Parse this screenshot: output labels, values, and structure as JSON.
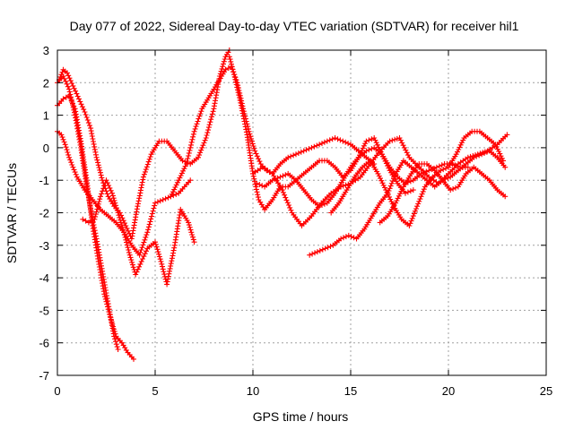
{
  "chart_data": {
    "type": "scatter",
    "title": "Day 077 of 2022, Sidereal Day-to-day VTEC variation (SDTVAR) for receiver hil1",
    "xlabel": "GPS time / hours",
    "ylabel": "SDTVAR / TECUs",
    "xlim": [
      0,
      25
    ],
    "ylim": [
      -7,
      3
    ],
    "xticks": [
      "0",
      "5",
      "10",
      "15",
      "20",
      "25"
    ],
    "yticks": [
      "3",
      "2",
      "1",
      "0",
      "-1",
      "-2",
      "-3",
      "-4",
      "-5",
      "-6",
      "-7"
    ],
    "grid": true,
    "marker": "plus",
    "color": "#ff0000",
    "series": [
      {
        "name": "s1",
        "x": [
          0.0,
          0.3,
          0.6,
          0.9,
          1.2,
          1.5,
          1.8,
          2.1,
          2.4,
          2.7,
          3.0,
          3.3,
          3.6,
          3.9
        ],
        "y": [
          1.3,
          1.5,
          1.6,
          1.2,
          0.2,
          -1.0,
          -2.4,
          -3.5,
          -4.5,
          -5.2,
          -5.8,
          -6.0,
          -6.3,
          -6.5
        ]
      },
      {
        "name": "s2",
        "x": [
          0.0,
          0.3,
          0.6,
          0.9,
          1.2,
          1.5,
          1.8,
          2.0,
          2.3,
          2.6,
          2.9,
          3.1
        ],
        "y": [
          2.0,
          2.2,
          1.8,
          1.0,
          0.0,
          -1.2,
          -2.2,
          -2.8,
          -3.8,
          -4.8,
          -5.8,
          -6.2
        ]
      },
      {
        "name": "s3",
        "x": [
          0.0,
          0.2,
          0.4,
          0.6,
          0.8,
          1.0,
          1.4,
          1.8,
          2.2,
          2.6,
          3.0,
          3.4,
          3.8,
          4.2,
          4.6,
          5.0,
          5.4,
          5.8,
          6.2,
          6.5,
          6.8
        ],
        "y": [
          0.5,
          0.4,
          0.1,
          -0.3,
          -0.6,
          -0.9,
          -1.3,
          -1.6,
          -1.9,
          -2.1,
          -2.3,
          -2.6,
          -3.0,
          -3.3,
          -2.6,
          -1.7,
          -1.6,
          -1.5,
          -1.4,
          -1.2,
          -1.0
        ]
      },
      {
        "name": "s4",
        "x": [
          0.1,
          0.3,
          0.5,
          0.8,
          1.1,
          1.4,
          1.7,
          2.0,
          2.3,
          2.6,
          2.9,
          3.2,
          3.5,
          3.8,
          4.1,
          4.4,
          4.8,
          5.2,
          5.6,
          6.0,
          6.4,
          6.8,
          7.2,
          7.6,
          8.0,
          8.3,
          8.6,
          8.8
        ],
        "y": [
          2.1,
          2.4,
          2.3,
          1.9,
          1.5,
          1.1,
          0.6,
          -0.3,
          -1.0,
          -1.5,
          -1.8,
          -2.0,
          -2.4,
          -2.8,
          -1.8,
          -0.9,
          -0.2,
          0.2,
          0.2,
          -0.1,
          -0.4,
          -0.5,
          -0.3,
          0.3,
          1.2,
          2.2,
          2.8,
          3.0
        ]
      },
      {
        "name": "s5",
        "x": [
          1.3,
          1.6,
          1.9,
          2.2,
          2.5,
          2.8,
          3.1,
          3.4,
          3.7,
          4.0,
          4.3,
          4.6,
          5.0,
          5.3,
          5.6,
          6.0,
          6.3,
          6.7,
          7.0
        ],
        "y": [
          -2.2,
          -2.3,
          -2.2,
          -1.5,
          -1.0,
          -1.4,
          -2.0,
          -2.6,
          -3.3,
          -3.9,
          -3.5,
          -3.1,
          -2.9,
          -3.5,
          -4.2,
          -3.0,
          -1.9,
          -2.3,
          -2.9
        ]
      },
      {
        "name": "s6",
        "x": [
          5.8,
          6.2,
          6.6,
          7.0,
          7.4,
          7.8,
          8.2,
          8.6,
          8.9,
          9.2,
          9.5,
          9.8,
          10.1,
          10.4,
          10.7,
          11.0,
          11.4,
          11.8,
          12.2,
          12.6,
          13.0,
          13.4,
          13.8,
          14.2,
          14.6,
          15.0,
          15.4,
          15.8,
          16.2
        ],
        "y": [
          -1.5,
          -1.0,
          -0.5,
          0.5,
          1.2,
          1.6,
          2.0,
          2.4,
          2.5,
          2.0,
          1.2,
          0.5,
          -0.1,
          -0.5,
          -0.7,
          -0.8,
          -0.5,
          -0.3,
          -0.2,
          -0.1,
          0.0,
          0.1,
          0.2,
          0.3,
          0.2,
          0.1,
          -0.1,
          -0.3,
          -0.5
        ]
      },
      {
        "name": "s7",
        "x": [
          8.8,
          9.1,
          9.4,
          9.7,
          10.0,
          10.3,
          10.6,
          11.0,
          11.4,
          11.8,
          12.2,
          12.6,
          13.0,
          13.4,
          13.8,
          14.2,
          14.6,
          15.0,
          15.4,
          15.8,
          16.2,
          16.6,
          17.0,
          17.4,
          17.8,
          18.2
        ],
        "y": [
          2.8,
          2.1,
          1.3,
          0.4,
          -0.8,
          -1.6,
          -1.9,
          -1.6,
          -1.2,
          -1.2,
          -1.0,
          -0.8,
          -0.6,
          -0.4,
          -0.4,
          -0.6,
          -0.9,
          -0.7,
          -0.3,
          0.2,
          0.3,
          -0.2,
          -0.7,
          -1.1,
          -1.4,
          -1.3
        ]
      },
      {
        "name": "s8",
        "x": [
          10.2,
          10.6,
          11.0,
          11.4,
          11.8,
          12.2,
          12.6,
          13.0,
          13.4,
          13.8,
          14.2,
          14.6,
          15.0,
          15.4,
          15.8,
          16.2,
          16.6,
          17.0,
          17.4,
          17.8,
          18.2,
          18.6,
          19.0,
          19.4,
          19.8,
          20.2,
          20.6,
          21.0
        ],
        "y": [
          -1.1,
          -1.2,
          -1.0,
          -0.9,
          -0.8,
          -1.0,
          -1.3,
          -1.6,
          -1.8,
          -1.7,
          -1.4,
          -1.0,
          -0.6,
          -0.3,
          -0.1,
          0.0,
          -0.2,
          -0.6,
          -0.9,
          -1.1,
          -1.0,
          -0.8,
          -0.7,
          -0.6,
          -0.5,
          -0.5,
          -0.6,
          -0.6
        ]
      },
      {
        "name": "s9",
        "x": [
          10.0,
          10.5,
          11.0,
          11.5,
          12.0,
          12.5,
          13.0,
          13.5,
          14.0,
          14.5,
          15.0,
          15.5,
          16.0,
          16.5,
          17.0,
          17.5,
          18.0,
          18.5,
          19.0,
          19.5,
          20.0,
          20.5,
          21.0,
          21.5,
          22.0,
          22.5,
          23.0
        ],
        "y": [
          -0.8,
          -0.6,
          -0.8,
          -1.3,
          -2.0,
          -2.4,
          -2.1,
          -1.7,
          -1.4,
          -1.2,
          -1.1,
          -0.9,
          -0.5,
          -0.1,
          0.2,
          0.3,
          -0.3,
          -0.6,
          -0.9,
          -1.1,
          -0.8,
          -0.5,
          -0.3,
          -0.2,
          -0.1,
          0.1,
          0.4
        ]
      },
      {
        "name": "s10",
        "x": [
          12.9,
          13.3,
          13.7,
          14.1,
          14.5,
          14.9,
          15.3,
          15.7,
          16.1,
          16.5,
          16.9,
          17.3,
          17.7,
          18.1,
          18.5,
          18.9,
          19.3,
          19.7,
          20.1,
          20.5,
          20.9,
          21.3,
          21.7,
          22.1,
          22.5,
          22.9
        ],
        "y": [
          -3.3,
          -3.2,
          -3.1,
          -3.0,
          -2.8,
          -2.7,
          -2.8,
          -2.5,
          -2.1,
          -1.7,
          -1.4,
          -0.8,
          -0.4,
          -0.6,
          -0.8,
          -1.0,
          -1.2,
          -1.0,
          -0.9,
          -0.7,
          -0.5,
          -0.3,
          -0.2,
          -0.1,
          -0.3,
          -0.6
        ]
      },
      {
        "name": "s11",
        "x": [
          14.0,
          14.4,
          14.8,
          15.2,
          15.6,
          16.0,
          16.4,
          16.8,
          17.2,
          17.6,
          18.0,
          18.4,
          18.8,
          19.2,
          19.6,
          20.0,
          20.4,
          20.8,
          21.2,
          21.6,
          22.0,
          22.4,
          22.8
        ],
        "y": [
          -2.0,
          -1.7,
          -1.3,
          -0.9,
          -0.6,
          -0.4,
          -0.8,
          -1.3,
          -1.8,
          -2.2,
          -2.4,
          -1.8,
          -1.2,
          -0.9,
          -0.7,
          -0.6,
          -0.2,
          0.3,
          0.5,
          0.5,
          0.3,
          0.1,
          -0.4
        ]
      },
      {
        "name": "s12",
        "x": [
          16.5,
          16.9,
          17.3,
          17.7,
          18.1,
          18.5,
          18.9,
          19.3,
          19.7,
          20.1,
          20.5,
          20.9,
          21.3,
          21.7,
          22.1,
          22.5,
          22.9
        ],
        "y": [
          -2.3,
          -2.1,
          -1.7,
          -1.2,
          -0.8,
          -0.5,
          -0.5,
          -0.7,
          -1.0,
          -1.3,
          -1.2,
          -0.8,
          -0.6,
          -0.8,
          -1.0,
          -1.3,
          -1.5
        ]
      }
    ]
  }
}
